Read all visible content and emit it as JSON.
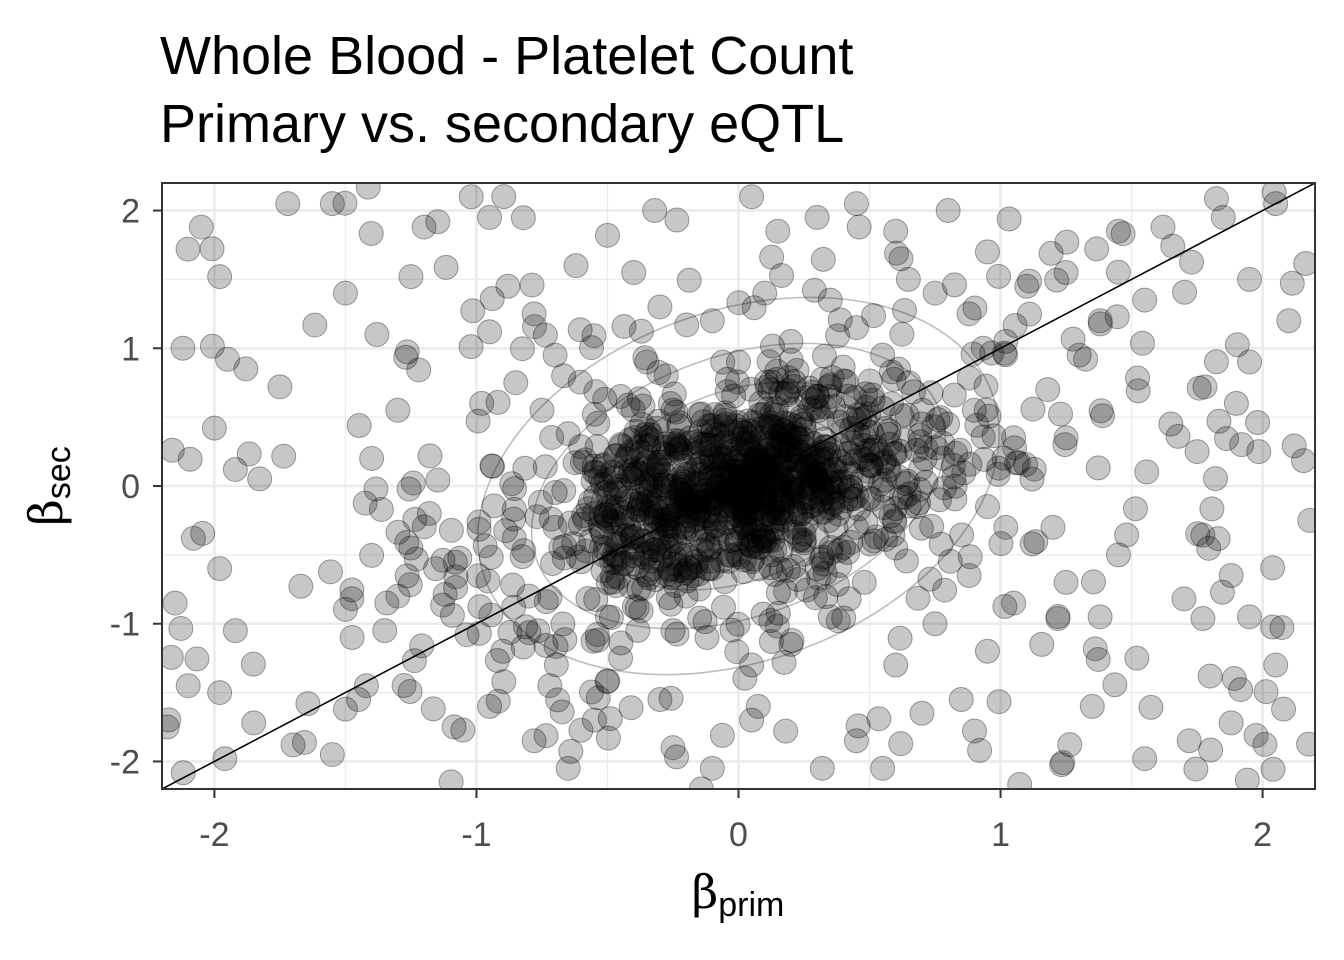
{
  "chart_data": {
    "type": "scatter",
    "title": "Whole Blood - Platelet Count",
    "subtitle": "Primary vs. secondary eQTL",
    "xlabel": {
      "symbol": "β",
      "subscript": "prim"
    },
    "ylabel": {
      "symbol": "β",
      "subscript": "sec"
    },
    "xlim": [
      -2.2,
      2.2
    ],
    "ylim": [
      -2.2,
      2.2
    ],
    "x_ticks": [
      -2,
      -1,
      0,
      1,
      2
    ],
    "y_ticks": [
      -2,
      -1,
      0,
      1,
      2
    ],
    "x_tick_labels": [
      "-2",
      "-1",
      "0",
      "1",
      "2"
    ],
    "y_tick_labels": [
      "-2",
      "-1",
      "0",
      "1",
      "2"
    ],
    "grid": true,
    "reference_line": {
      "slope": 1,
      "intercept": 0,
      "color": "#000000"
    },
    "density_contours": {
      "color": "#bdbdbd",
      "center": [
        0.0,
        0.0
      ],
      "levels": 5
    },
    "point_style": {
      "color": "#000000",
      "opacity": 0.22
    },
    "point_count_approx": 1400,
    "points": [
      [
        -2.05,
        1.88
      ],
      [
        -1.98,
        1.52
      ],
      [
        -2.12,
        1.0
      ],
      [
        -1.95,
        0.92
      ],
      [
        -1.88,
        0.85
      ],
      [
        -1.75,
        0.72
      ],
      [
        -2.0,
        0.42
      ],
      [
        -1.92,
        0.12
      ],
      [
        -2.08,
        -0.38
      ],
      [
        -1.98,
        -0.6
      ],
      [
        -2.15,
        -0.85
      ],
      [
        -1.92,
        -1.05
      ],
      [
        -2.1,
        -1.45
      ],
      [
        -1.98,
        -1.5
      ],
      [
        -1.85,
        -1.72
      ],
      [
        -1.96,
        -1.98
      ],
      [
        -2.18,
        -1.75
      ],
      [
        -1.7,
        -1.88
      ],
      [
        -1.55,
        -1.95
      ],
      [
        -1.45,
        -1.55
      ],
      [
        -1.5,
        -1.62
      ],
      [
        -1.42,
        -1.45
      ],
      [
        -1.35,
        -1.05
      ],
      [
        -1.3,
        -0.8
      ],
      [
        -1.25,
        -0.45
      ],
      [
        -1.18,
        -0.2
      ],
      [
        -1.4,
        0.2
      ],
      [
        -1.3,
        0.55
      ],
      [
        -1.5,
        1.4
      ],
      [
        -1.25,
        1.52
      ],
      [
        -1.38,
        1.1
      ],
      [
        -1.2,
        1.88
      ],
      [
        -1.55,
        2.05
      ],
      [
        -1.72,
        2.05
      ],
      [
        -1.02,
        2.1
      ],
      [
        -0.95,
        1.95
      ],
      [
        -0.88,
        1.45
      ],
      [
        -0.78,
        1.25
      ],
      [
        -0.95,
        1.12
      ],
      [
        -0.7,
        0.95
      ],
      [
        -0.85,
        0.75
      ],
      [
        -0.98,
        0.6
      ],
      [
        -0.75,
        0.55
      ],
      [
        -0.8,
        -0.8
      ],
      [
        -0.9,
        -1.2
      ],
      [
        -0.72,
        -1.45
      ],
      [
        -0.95,
        -1.6
      ],
      [
        -0.78,
        -1.85
      ],
      [
        -0.65,
        -2.05
      ],
      [
        -0.55,
        -1.7
      ],
      [
        -0.45,
        -1.25
      ],
      [
        -0.62,
        1.6
      ],
      [
        -0.5,
        1.82
      ],
      [
        -0.4,
        1.55
      ],
      [
        -0.32,
        2.0
      ],
      [
        0.05,
        2.1
      ],
      [
        0.15,
        1.85
      ],
      [
        0.3,
        1.95
      ],
      [
        0.45,
        2.05
      ],
      [
        0.6,
        1.85
      ],
      [
        0.8,
        2.0
      ],
      [
        0.95,
        1.7
      ],
      [
        1.1,
        1.45
      ],
      [
        1.25,
        1.55
      ],
      [
        1.38,
        1.2
      ],
      [
        1.55,
        1.35
      ],
      [
        1.45,
        1.85
      ],
      [
        1.62,
        1.88
      ],
      [
        1.85,
        1.95
      ],
      [
        2.05,
        2.05
      ],
      [
        1.95,
        1.5
      ],
      [
        2.1,
        1.2
      ],
      [
        1.95,
        0.9
      ],
      [
        1.78,
        0.72
      ],
      [
        1.9,
        0.6
      ],
      [
        1.65,
        0.45
      ],
      [
        1.75,
        0.25
      ],
      [
        1.92,
        0.3
      ],
      [
        2.18,
        -0.25
      ],
      [
        1.88,
        -0.65
      ],
      [
        1.7,
        -0.82
      ],
      [
        1.95,
        -0.95
      ],
      [
        1.8,
        -1.38
      ],
      [
        2.05,
        -1.3
      ],
      [
        1.88,
        -1.72
      ],
      [
        2.08,
        -1.62
      ],
      [
        1.72,
        -1.85
      ],
      [
        1.55,
        -1.98
      ],
      [
        1.35,
        -1.6
      ],
      [
        1.52,
        -1.25
      ],
      [
        1.38,
        -0.95
      ],
      [
        1.25,
        -0.7
      ],
      [
        1.45,
        -0.5
      ],
      [
        1.2,
        -0.3
      ],
      [
        1.05,
        -0.85
      ],
      [
        0.95,
        -1.2
      ],
      [
        0.85,
        -1.55
      ],
      [
        0.92,
        -1.92
      ],
      [
        0.7,
        -1.65
      ],
      [
        0.55,
        -2.05
      ],
      [
        0.45,
        -1.85
      ],
      [
        0.32,
        -2.05
      ],
      [
        0.18,
        -1.78
      ],
      [
        0.05,
        -1.7
      ],
      [
        -0.1,
        -2.05
      ],
      [
        -0.25,
        -1.9
      ],
      [
        -0.3,
        -1.55
      ],
      [
        0.6,
        -1.3
      ],
      [
        0.75,
        -1.0
      ],
      [
        0.88,
        -0.65
      ],
      [
        1.02,
        -0.3
      ],
      [
        1.12,
        0.05
      ],
      [
        1.25,
        0.35
      ],
      [
        1.18,
        0.7
      ],
      [
        1.3,
        0.95
      ],
      [
        1.02,
        1.05
      ],
      [
        0.88,
        1.25
      ],
      [
        0.75,
        1.4
      ],
      [
        0.62,
        1.65
      ],
      [
        0.9,
        0.55
      ],
      [
        1.05,
        0.35
      ],
      [
        0.82,
        0.15
      ],
      [
        0.95,
        -0.15
      ],
      [
        -0.6,
        -0.55
      ],
      [
        -0.7,
        -0.3
      ],
      [
        -0.55,
        0.1
      ],
      [
        -0.65,
        0.38
      ],
      [
        -0.45,
        0.65
      ],
      [
        -0.35,
        0.9
      ],
      [
        -0.5,
        -0.95
      ],
      [
        -0.38,
        -0.75
      ],
      [
        -0.25,
        -1.05
      ],
      [
        0.45,
        1.15
      ],
      [
        0.55,
        0.95
      ],
      [
        0.65,
        0.75
      ],
      [
        0.7,
        0.45
      ],
      [
        0.78,
        0.2
      ],
      [
        0.68,
        -0.15
      ],
      [
        0.6,
        -0.45
      ],
      [
        0.48,
        -0.7
      ],
      [
        0.35,
        -0.95
      ],
      [
        0.2,
        -1.15
      ],
      [
        0.05,
        -1.3
      ],
      [
        -0.12,
        -1.1
      ],
      [
        -0.08,
        0.05
      ],
      [
        0.1,
        0.15
      ],
      [
        0.0,
        -0.1
      ],
      [
        -0.2,
        -0.05
      ],
      [
        0.2,
        0.3
      ],
      [
        0.15,
        -0.2
      ],
      [
        -0.15,
        0.25
      ],
      [
        0.3,
        0.05
      ],
      [
        -0.3,
        -0.25
      ],
      [
        0.25,
        -0.35
      ],
      [
        -0.05,
        0.45
      ],
      [
        0.4,
        0.4
      ],
      [
        -0.4,
        -0.45
      ],
      [
        0.05,
        -0.55
      ],
      [
        -0.25,
        0.55
      ],
      [
        0.35,
        0.65
      ],
      [
        -0.45,
        0.3
      ],
      [
        0.5,
        0.15
      ],
      [
        -0.55,
        -0.2
      ],
      [
        0.45,
        -0.3
      ],
      [
        -0.1,
        -0.6
      ],
      [
        0.12,
        0.7
      ],
      [
        -0.35,
        0.0
      ],
      [
        0.3,
        -0.6
      ],
      [
        -0.2,
        -0.8
      ],
      [
        0.0,
        0.9
      ],
      [
        0.2,
        1.05
      ],
      [
        -0.1,
        1.2
      ],
      [
        0.1,
        1.4
      ],
      [
        0.35,
        1.35
      ],
      [
        -0.3,
        1.3
      ]
    ]
  }
}
